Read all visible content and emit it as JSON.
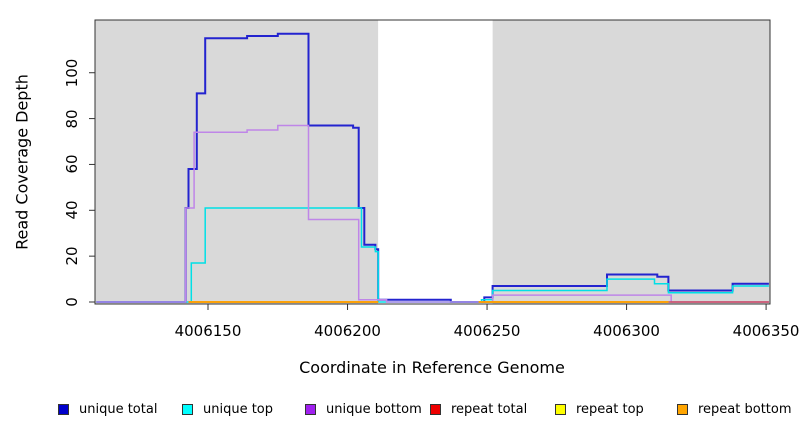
{
  "figure": {
    "kind": "R step plot of read coverage",
    "background": "#ffffff"
  },
  "axes": {
    "x": {
      "title": "Coordinate in Reference Genome",
      "ticks": [
        {
          "label": "4006150",
          "value": 4006150
        },
        {
          "label": "4006200",
          "value": 4006200
        },
        {
          "label": "4006250",
          "value": 4006250
        },
        {
          "label": "4006300",
          "value": 4006300
        },
        {
          "label": "4006350",
          "value": 4006350
        }
      ]
    },
    "y": {
      "title": "Read Coverage Depth",
      "ticks": [
        {
          "label": "0",
          "value": 0
        },
        {
          "label": "20",
          "value": 20
        },
        {
          "label": "40",
          "value": 40
        },
        {
          "label": "60",
          "value": 60
        },
        {
          "label": "80",
          "value": 80
        },
        {
          "label": "100",
          "value": 100
        }
      ]
    }
  },
  "legend": {
    "items": [
      {
        "label": "unique total",
        "color": "#0000cc"
      },
      {
        "label": "unique top",
        "color": "#00ffff"
      },
      {
        "label": "unique bottom",
        "color": "#a020f0"
      },
      {
        "label": "repeat total",
        "color": "#ee0000"
      },
      {
        "label": "repeat top",
        "color": "#ffff00"
      },
      {
        "label": "repeat bottom",
        "color": "#ffa500"
      }
    ]
  },
  "chart_data": {
    "type": "line",
    "subtype": "step",
    "title": "",
    "xlabel": "Coordinate in Reference Genome",
    "ylabel": "Read Coverage Depth",
    "xlim": [
      4006109.5,
      4006351.4
    ],
    "ylim": [
      0,
      123
    ],
    "grid": false,
    "legend_position": "bottom",
    "plot_bg": "#d9d9d9",
    "highlight_band": {
      "x0": 4006211,
      "x1": 4006252,
      "color": "#ffffff"
    },
    "series": [
      {
        "name": "unique total",
        "color": "#2323cf",
        "stroke_width": 2,
        "segments": [
          [
            [
              4006110,
              0
            ],
            [
              4006142,
              41
            ],
            [
              4006143,
              58
            ],
            [
              4006146,
              91
            ],
            [
              4006149,
              115
            ],
            [
              4006164,
              116
            ],
            [
              4006175,
              117
            ],
            [
              4006186,
              77
            ],
            [
              4006202,
              76
            ],
            [
              4006204,
              41
            ],
            [
              4006206,
              25
            ],
            [
              4006210,
              23
            ],
            [
              4006211,
              1
            ],
            [
              4006237,
              0
            ],
            [
              4006249,
              2
            ],
            [
              4006252,
              7
            ],
            [
              4006293,
              12
            ],
            [
              4006311,
              11
            ],
            [
              4006315,
              5
            ],
            [
              4006338,
              8
            ],
            [
              4006351,
              8
            ]
          ]
        ]
      },
      {
        "name": "unique top",
        "color": "#00e0e6",
        "stroke_width": 1.5,
        "segments": [
          [
            [
              4006110,
              0
            ],
            [
              4006144,
              17
            ],
            [
              4006149,
              41
            ],
            [
              4006205,
              24
            ],
            [
              4006210,
              22
            ],
            [
              4006211,
              0
            ],
            [
              4006248,
              1
            ],
            [
              4006252,
              5
            ],
            [
              4006293,
              10
            ],
            [
              4006310,
              8
            ],
            [
              4006315,
              4
            ],
            [
              4006338,
              7
            ],
            [
              4006351,
              7
            ]
          ]
        ]
      },
      {
        "name": "unique bottom",
        "color": "#bf86e8",
        "stroke_width": 1.5,
        "segments": [
          [
            [
              4006110,
              0
            ],
            [
              4006142,
              41
            ],
            [
              4006145,
              74
            ],
            [
              4006164,
              75
            ],
            [
              4006175,
              77
            ],
            [
              4006186,
              36
            ],
            [
              4006204,
              1
            ],
            [
              4006214,
              0
            ],
            [
              4006252,
              3
            ],
            [
              4006316,
              0
            ],
            [
              4006351,
              0
            ]
          ]
        ]
      },
      {
        "name": "repeat total",
        "color": "#cc4a5e",
        "stroke_width": 1.5,
        "segments": [
          [
            [
              4006143,
              0
            ],
            [
              4006211,
              0
            ]
          ],
          [
            [
              4006247,
              0
            ],
            [
              4006351,
              0
            ]
          ]
        ]
      },
      {
        "name": "repeat top",
        "color": "#ffff00",
        "stroke_width": 1.5,
        "segments": [
          [
            [
              4006143,
              0
            ],
            [
              4006211,
              0
            ]
          ],
          [
            [
              4006247,
              0
            ],
            [
              4006315,
              0
            ]
          ]
        ]
      },
      {
        "name": "repeat bottom",
        "color": "#ff9d00",
        "stroke_width": 1.8,
        "segments": [
          [
            [
              4006143,
              0
            ],
            [
              4006211,
              0
            ]
          ],
          [
            [
              4006247,
              0
            ],
            [
              4006315,
              0
            ]
          ]
        ]
      }
    ]
  }
}
